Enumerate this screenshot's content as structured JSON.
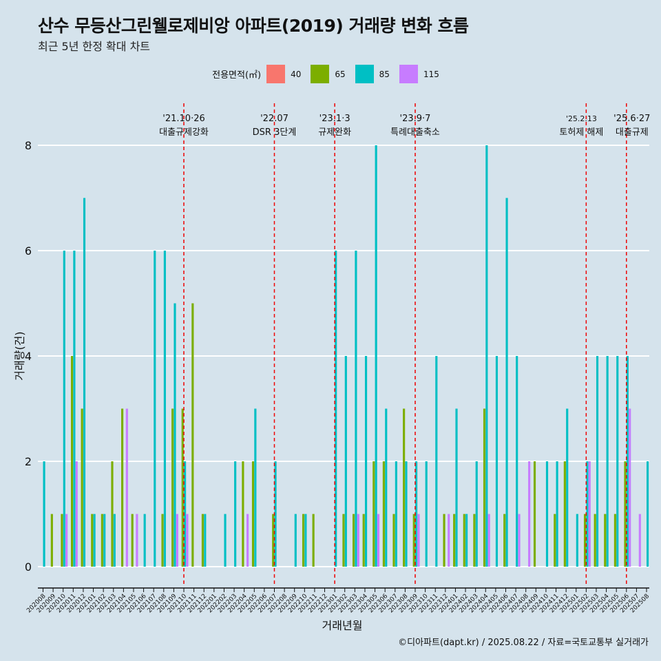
{
  "title": "산수 무등산그린웰로제비앙 아파트(2019) 거래량 변화 흐름",
  "subtitle": "최근 5년 한정 확대 차트",
  "caption": "©디아파트(dapt.kr) / 2025.08.22 / 자료=국토교통부 실거래가",
  "legend": {
    "title": "전용면적(㎡)",
    "items": [
      {
        "label": "40",
        "color": "#F8766D"
      },
      {
        "label": "65",
        "color": "#7CAE00"
      },
      {
        "label": "85",
        "color": "#00BFC4"
      },
      {
        "label": "115",
        "color": "#C77CFF"
      }
    ]
  },
  "chart_data": {
    "type": "bar",
    "xlabel": "거래년월",
    "ylabel": "거래량(건)",
    "ylim": [
      0,
      8.8
    ],
    "yticks": [
      0,
      2,
      4,
      6,
      8
    ],
    "grid": "horizontal",
    "legend_position": "top",
    "categories": [
      "202008",
      "202009",
      "202010",
      "202011",
      "202012",
      "202101",
      "202102",
      "202103",
      "202104",
      "202105",
      "202106",
      "202107",
      "202108",
      "202109",
      "202110",
      "202111",
      "202112",
      "202201",
      "202202",
      "202203",
      "202204",
      "202205",
      "202206",
      "202207",
      "202208",
      "202209",
      "202210",
      "202211",
      "202212",
      "202301",
      "202302",
      "202303",
      "202304",
      "202305",
      "202306",
      "202307",
      "202308",
      "202309",
      "202310",
      "202311",
      "202312",
      "202401",
      "202402",
      "202403",
      "202404",
      "202405",
      "202406",
      "202407",
      "202408",
      "202409",
      "202410",
      "202411",
      "202412",
      "202501",
      "202502",
      "202503",
      "202504",
      "202505",
      "202506",
      "202507",
      "202508"
    ],
    "series": [
      {
        "name": "40",
        "color": "#F8766D",
        "values": [
          0,
          0,
          0,
          0,
          0,
          0,
          0,
          0,
          0,
          0,
          0,
          0,
          0,
          0,
          0,
          0,
          0,
          0,
          0,
          0,
          0,
          0,
          0,
          0,
          0,
          0,
          0,
          0,
          0,
          0,
          0,
          0,
          0,
          0,
          0,
          0,
          0,
          0,
          0,
          0,
          0,
          0,
          0,
          0,
          0,
          0,
          0,
          0,
          0,
          0,
          0,
          0,
          0,
          0,
          0,
          0,
          0,
          0,
          0,
          0,
          0
        ]
      },
      {
        "name": "65",
        "color": "#7CAE00",
        "values": [
          0,
          1,
          1,
          4,
          3,
          1,
          1,
          2,
          3,
          1,
          0,
          0,
          1,
          3,
          3,
          5,
          1,
          0,
          0,
          0,
          2,
          2,
          0,
          1,
          0,
          0,
          1,
          1,
          0,
          0,
          1,
          1,
          1,
          2,
          2,
          1,
          3,
          1,
          0,
          0,
          1,
          1,
          1,
          1,
          3,
          0,
          1,
          0,
          0,
          2,
          0,
          1,
          2,
          0,
          1,
          1,
          1,
          1,
          2,
          0,
          0
        ]
      },
      {
        "name": "85",
        "color": "#00BFC4",
        "values": [
          2,
          0,
          6,
          6,
          7,
          1,
          1,
          1,
          0,
          0,
          1,
          6,
          6,
          5,
          2,
          0,
          1,
          0,
          1,
          2,
          0,
          3,
          0,
          2,
          0,
          1,
          1,
          0,
          0,
          6,
          4,
          6,
          4,
          8,
          3,
          2,
          2,
          2,
          2,
          4,
          0,
          3,
          1,
          2,
          8,
          4,
          7,
          4,
          0,
          0,
          2,
          2,
          3,
          1,
          2,
          4,
          4,
          4,
          4,
          0,
          2
        ]
      },
      {
        "name": "115",
        "color": "#C77CFF",
        "values": [
          0,
          0,
          1,
          2,
          0,
          0,
          0,
          0,
          3,
          1,
          0,
          0,
          0,
          1,
          1,
          0,
          0,
          0,
          0,
          0,
          1,
          0,
          0,
          0,
          0,
          0,
          0,
          0,
          0,
          0,
          0,
          1,
          0,
          1,
          0,
          0,
          0,
          1,
          0,
          0,
          1,
          0,
          0,
          0,
          1,
          0,
          0,
          1,
          2,
          0,
          0,
          0,
          0,
          0,
          2,
          0,
          0,
          0,
          3,
          1,
          0
        ]
      }
    ],
    "annotations": [
      {
        "x": "202110",
        "date": "'21.10·26",
        "label": "대출규제강화"
      },
      {
        "x": "202207",
        "date": "'22.07",
        "label": "DSR 3단계"
      },
      {
        "x": "202301",
        "date": "'23.1·3",
        "label": "규제완화"
      },
      {
        "x": "202309",
        "date": "'23.9·7",
        "label": "특례대출축소"
      },
      {
        "x": "202502",
        "date": "'25.2.13",
        "label": "토허제 해제"
      },
      {
        "x": "202506",
        "date": "'25.6·27",
        "label": "대출규제"
      }
    ]
  }
}
